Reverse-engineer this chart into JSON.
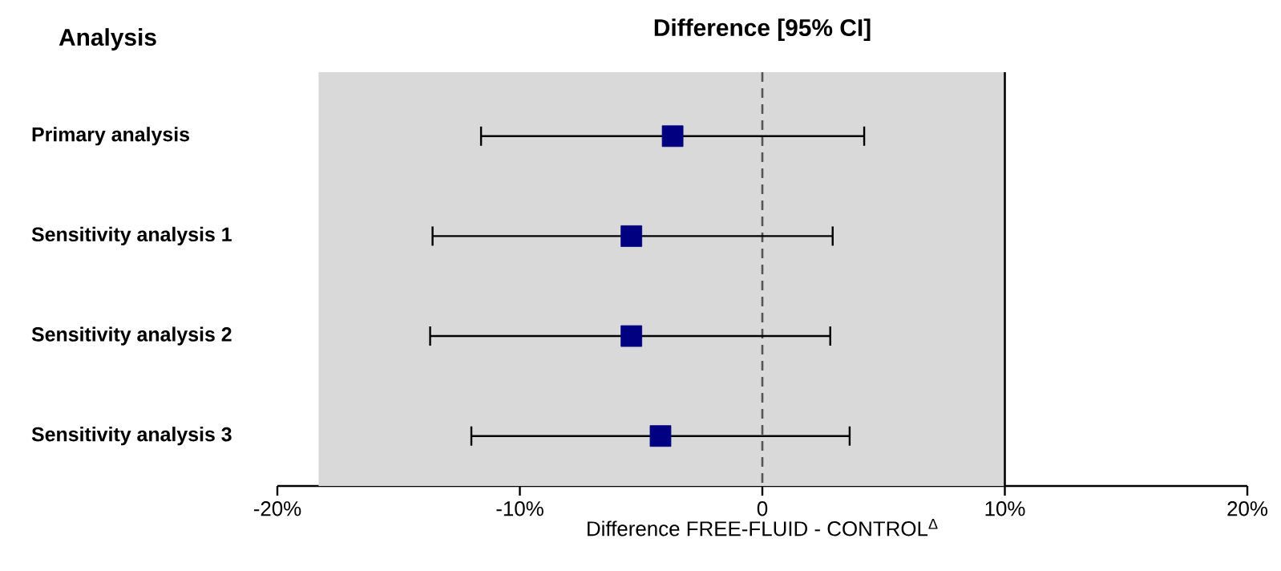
{
  "chart_data": {
    "type": "scatter",
    "orientation": "horizontal",
    "title": "Difference [95% CI]",
    "ylabel": "Analysis",
    "xlabel": "Difference FREE-FLUID - CONTROL$^{Δ}$",
    "categories": [
      "Primary analysis",
      "Sensitivity analysis 1",
      "Sensitivity analysis 2",
      "Sensitivity analysis 3"
    ],
    "values": [
      -3.7,
      -5.4,
      -5.4,
      -4.2
    ],
    "errors": [
      [
        -11.6,
        4.2
      ],
      [
        -13.6,
        2.9
      ],
      [
        -13.7,
        2.8
      ],
      [
        -12.0,
        3.6
      ]
    ],
    "color": "#000080",
    "marker": "square",
    "xlim": [
      -20,
      20
    ],
    "xticks": [
      {
        "value": -20,
        "label": "-20%"
      },
      {
        "value": -10,
        "label": "-10%"
      },
      {
        "value": 0,
        "label": "0"
      },
      {
        "value": 10,
        "label": "10%"
      },
      {
        "value": 20,
        "label": "20%"
      }
    ],
    "bands": [
      {
        "axis": "x",
        "from": -18.3,
        "to": 10,
        "color": "#d9d9d9"
      }
    ],
    "ref_lines": [
      {
        "axis": "x",
        "value": 0,
        "color": "#555555",
        "line_style": "dashed"
      },
      {
        "axis": "x",
        "value": 10,
        "color": "#000000",
        "line_style": "solid"
      }
    ]
  }
}
